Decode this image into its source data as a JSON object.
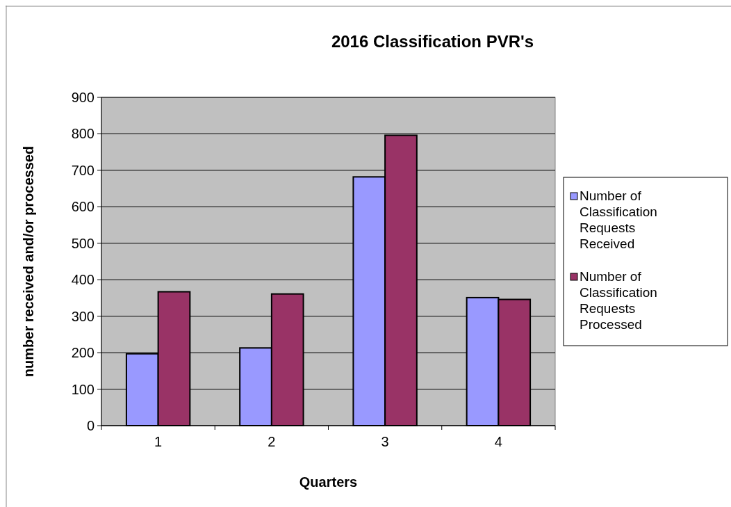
{
  "chart_data": {
    "type": "bar",
    "title": "2016 Classification PVR's",
    "xlabel": "Quarters",
    "ylabel": "number received and/or processed",
    "categories": [
      "1",
      "2",
      "3",
      "4"
    ],
    "series": [
      {
        "name": "Number of Classification Requests Received",
        "color": "#9999ff",
        "values": [
          197,
          213,
          682,
          351
        ]
      },
      {
        "name": "Number of Classification Requests Processed",
        "color": "#993366",
        "values": [
          367,
          361,
          796,
          346
        ]
      }
    ],
    "ylim": [
      0,
      900
    ],
    "yticks": [
      0,
      100,
      200,
      300,
      400,
      500,
      600,
      700,
      800,
      900
    ],
    "grid": "y",
    "legend": "right"
  }
}
